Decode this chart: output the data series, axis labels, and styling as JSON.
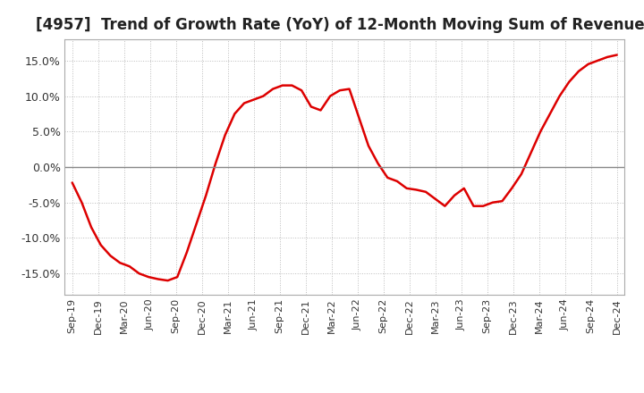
{
  "title": "[4957]  Trend of Growth Rate (YoY) of 12-Month Moving Sum of Revenues",
  "title_fontsize": 12,
  "ylim": [
    -0.18,
    0.18
  ],
  "yticks": [
    -0.15,
    -0.1,
    -0.05,
    0.0,
    0.05,
    0.1,
    0.15
  ],
  "ytick_labels": [
    "-15.0%",
    "-10.0%",
    "-5.0%",
    "0.0%",
    "5.0%",
    "10.0%",
    "15.0%"
  ],
  "line_color": "#DD0000",
  "zero_line_color": "#888888",
  "background_color": "#ffffff",
  "grid_color": "#bbbbbb",
  "spine_color": "#aaaaaa",
  "values": [
    -0.022,
    -0.05,
    -0.085,
    -0.11,
    -0.125,
    -0.135,
    -0.14,
    -0.15,
    -0.155,
    -0.158,
    -0.16,
    -0.155,
    -0.12,
    -0.08,
    -0.04,
    0.005,
    0.045,
    0.075,
    0.09,
    0.095,
    0.1,
    0.11,
    0.115,
    0.115,
    0.108,
    0.085,
    0.08,
    0.1,
    0.108,
    0.11,
    0.07,
    0.03,
    0.005,
    -0.015,
    -0.02,
    -0.03,
    -0.032,
    -0.035,
    -0.045,
    -0.055,
    -0.04,
    -0.03,
    -0.055,
    -0.055,
    -0.05,
    -0.048,
    -0.03,
    -0.01,
    0.02,
    0.05,
    0.075,
    0.1,
    0.12,
    0.135,
    0.145,
    0.15,
    0.155,
    0.158
  ],
  "xtick_labels": [
    "Sep-19",
    "Dec-19",
    "Mar-20",
    "Jun-20",
    "Sep-20",
    "Dec-20",
    "Mar-21",
    "Jun-21",
    "Sep-21",
    "Dec-21",
    "Mar-22",
    "Jun-22",
    "Sep-22",
    "Dec-22",
    "Mar-23",
    "Jun-23",
    "Sep-23",
    "Dec-23",
    "Mar-24",
    "Jun-24",
    "Sep-24",
    "Dec-24"
  ]
}
